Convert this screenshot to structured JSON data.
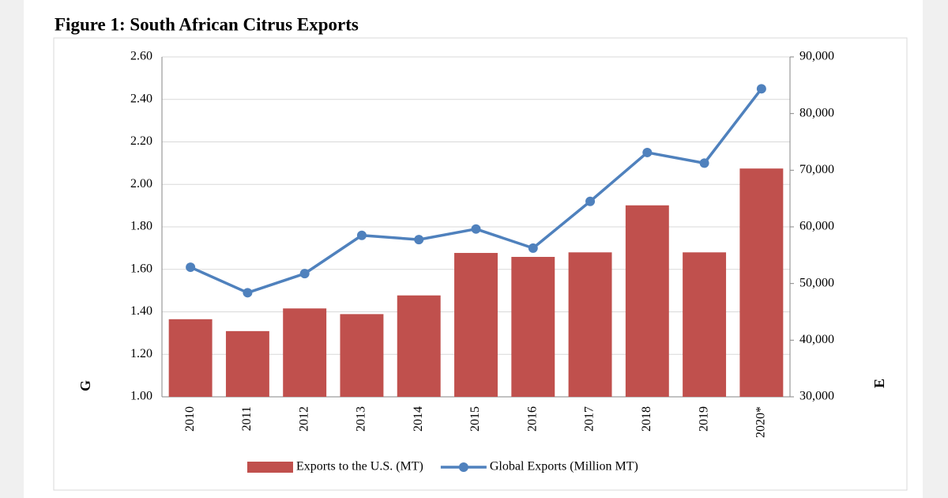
{
  "chart_data": {
    "type": "bar-line",
    "title": "Figure 1: South African Citrus Exports",
    "y_label": "G",
    "y2_label": "E",
    "categories": [
      "2010",
      "2011",
      "2012",
      "2013",
      "2014",
      "2015",
      "2016",
      "2017",
      "2018",
      "2019",
      "2020*"
    ],
    "series": [
      {
        "name": "Exports to the U.S. (MT)",
        "type": "bar",
        "axis": "y2",
        "color": "#c0504d",
        "values": [
          43700,
          41600,
          45600,
          44600,
          47900,
          55400,
          54700,
          55500,
          63800,
          55500,
          70300
        ]
      },
      {
        "name": "Global Exports (Million MT)",
        "type": "line",
        "color": "#4f81bd",
        "values": [
          1.61,
          1.49,
          1.58,
          1.76,
          1.74,
          1.79,
          1.7,
          1.92,
          2.15,
          2.1,
          2.45
        ]
      }
    ],
    "ylim": [
      1.0,
      2.6
    ],
    "yticks": [
      {
        "value": 1.0,
        "label": "1.00"
      },
      {
        "value": 1.2,
        "label": "1.20"
      },
      {
        "value": 1.4,
        "label": "1.40"
      },
      {
        "value": 1.6,
        "label": "1.60"
      },
      {
        "value": 1.8,
        "label": "1.80"
      },
      {
        "value": 2.0,
        "label": "2.00"
      },
      {
        "value": 2.2,
        "label": "2.20"
      },
      {
        "value": 2.4,
        "label": "2.40"
      },
      {
        "value": 2.6,
        "label": "2.60"
      }
    ],
    "y2lim": [
      30000,
      90000
    ],
    "y2ticks": [
      {
        "value": 30000,
        "label": "30,000"
      },
      {
        "value": 40000,
        "label": "40,000"
      },
      {
        "value": 50000,
        "label": "50,000"
      },
      {
        "value": 60000,
        "label": "60,000"
      },
      {
        "value": 70000,
        "label": "70,000"
      },
      {
        "value": 80000,
        "label": "80,000"
      },
      {
        "value": 90000,
        "label": "90,000"
      }
    ],
    "grid": true,
    "legend": "bottom"
  }
}
